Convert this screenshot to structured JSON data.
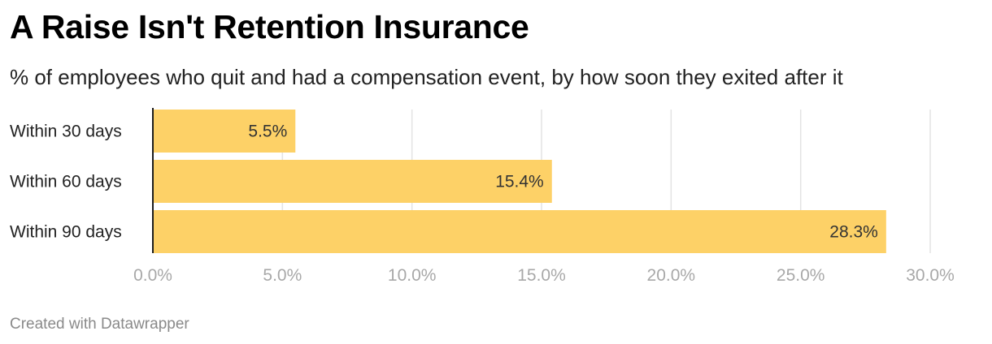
{
  "header": {
    "title": "A Raise Isn't Retention Insurance",
    "subtitle": "% of employees who quit and had a compensation event, by how soon they exited after it"
  },
  "footer": {
    "credit": "Created with Datawrapper"
  },
  "chart_data": {
    "type": "bar",
    "orientation": "horizontal",
    "title": "A Raise Isn't Retention Insurance",
    "subtitle": "% of employees who quit and had a compensation event, by how soon they exited after it",
    "categories": [
      "Within 30 days",
      "Within 60 days",
      "Within 90 days"
    ],
    "values": [
      5.5,
      15.4,
      28.3
    ],
    "value_labels": [
      "5.5%",
      "15.4%",
      "28.3%"
    ],
    "xlim": [
      0,
      30
    ],
    "ticks": [
      0,
      5,
      10,
      15,
      20,
      25,
      30
    ],
    "tick_labels": [
      "0.0%",
      "5.0%",
      "10.0%",
      "15.0%",
      "20.0%",
      "25.0%",
      "30.0%"
    ],
    "grid": true,
    "legend": "none",
    "colors": {
      "bar": "#fdd167",
      "grid": "#e3e3e3",
      "axis": "#1d1d1d"
    }
  }
}
